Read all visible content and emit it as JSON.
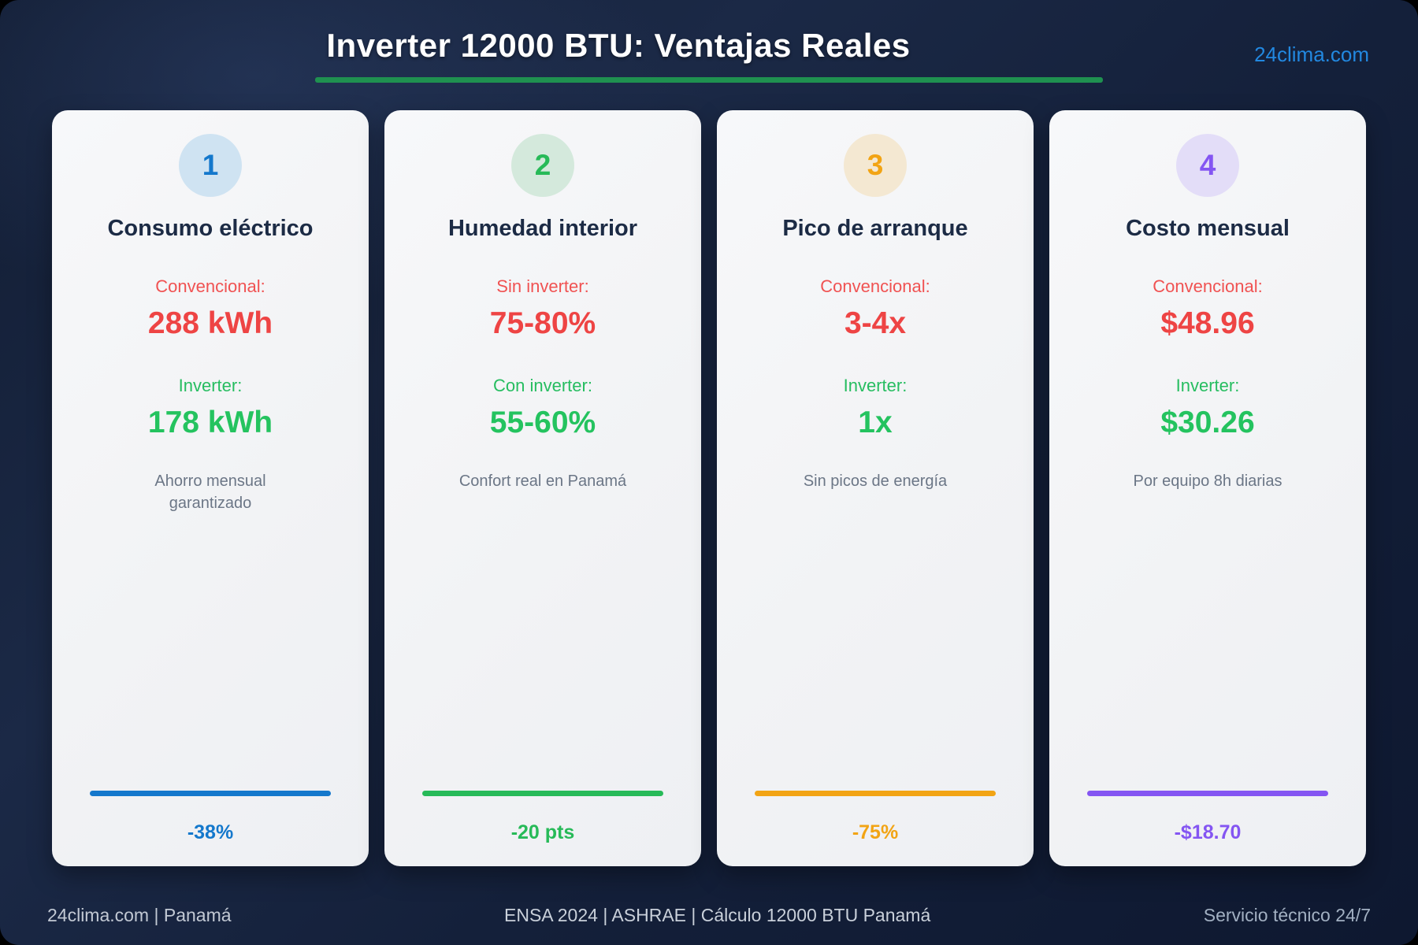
{
  "header": {
    "title": "Inverter 12000 BTU: Ventajas Reales",
    "site_link": "24clima.com",
    "underline_color": "#1f9150",
    "link_color": "#2288e0"
  },
  "cards": [
    {
      "number": "1",
      "title": "Consumo eléctrico",
      "bad_label": "Convencional:",
      "bad_value": "288 kWh",
      "good_label": "Inverter:",
      "good_value": "178 kWh",
      "note": "Ahorro mensual garantizado",
      "badge": "-38%",
      "accent": "#1478cc",
      "accent_bg": "#cfe3f2"
    },
    {
      "number": "2",
      "title": "Humedad interior",
      "bad_label": "Sin inverter:",
      "bad_value": "75-80%",
      "good_label": "Con inverter:",
      "good_value": "55-60%",
      "note": "Confort real en Panamá",
      "badge": "-20 pts",
      "accent": "#27ba58",
      "accent_bg": "#d4e9dc"
    },
    {
      "number": "3",
      "title": "Pico de arranque",
      "bad_label": "Convencional:",
      "bad_value": "3-4x",
      "good_label": "Inverter:",
      "good_value": "1x",
      "note": "Sin picos de energía",
      "badge": "-75%",
      "accent": "#f2a414",
      "accent_bg": "#f4e8d2"
    },
    {
      "number": "4",
      "title": "Costo mensual",
      "bad_label": "Convencional:",
      "bad_value": "$48.96",
      "good_label": "Inverter:",
      "good_value": "$30.26",
      "note": "Por equipo 8h diarias",
      "badge": "-$18.70",
      "accent": "#8455f2",
      "accent_bg": "#e3ddf8"
    }
  ],
  "status_colors": {
    "bad": "#ee4444",
    "good": "#24c35f"
  },
  "footer": {
    "left": "24clima.com | Panamá",
    "center": "ENSA 2024 | ASHRAE | Cálculo 12000 BTU Panamá",
    "right": "Servicio técnico 24/7"
  }
}
